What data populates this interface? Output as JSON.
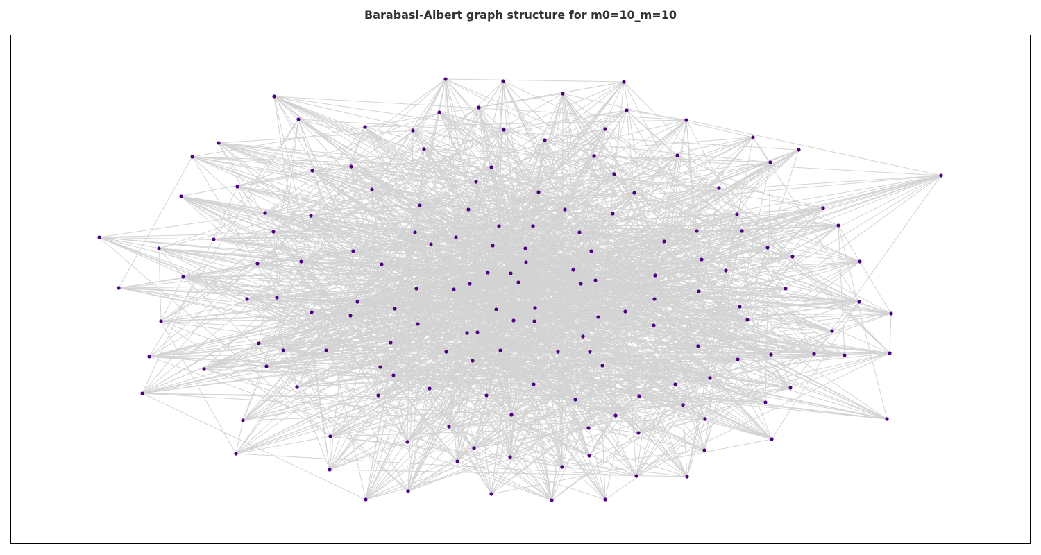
{
  "title": "Barabasi-Albert graph structure for m0=10_m=10",
  "colors": {
    "node": "#4b0082",
    "edge": "#d3d3d3",
    "frame": "#000000",
    "title": "#333333"
  },
  "graph": {
    "model": "Barabasi-Albert",
    "m0": 10,
    "m": 10
  }
}
